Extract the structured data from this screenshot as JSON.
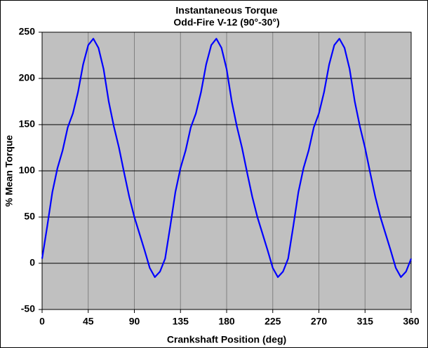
{
  "chart_data": {
    "type": "line",
    "title": "Instantaneous Torque",
    "subtitle": "Odd-Fire V-12 (90°-30°)",
    "x_label": "Crankshaft Position (deg)",
    "y_label": "% Mean Torque",
    "x": [
      0,
      5,
      10,
      15,
      20,
      25,
      30,
      35,
      40,
      45,
      50,
      55,
      60,
      65,
      70,
      75,
      80,
      85,
      90,
      95,
      100,
      105,
      110,
      115,
      120,
      125,
      130,
      135,
      140,
      145,
      150,
      155,
      160,
      165,
      170,
      175,
      180,
      185,
      190,
      195,
      200,
      205,
      210,
      215,
      220,
      225,
      230,
      235,
      240,
      245,
      250,
      255,
      260,
      265,
      270,
      275,
      280,
      285,
      290,
      295,
      300,
      305,
      310,
      315,
      320,
      325,
      330,
      335,
      340,
      345,
      350,
      355,
      360
    ],
    "series": [
      {
        "name": "Torque",
        "color": "#0000ff",
        "values": [
          5,
          40,
          77,
          103,
          122,
          147,
          162,
          185,
          215,
          236,
          243,
          233,
          210,
          175,
          148,
          125,
          98,
          72,
          50,
          32,
          14,
          -5,
          -15,
          -9,
          5,
          40,
          77,
          103,
          122,
          147,
          162,
          185,
          215,
          236,
          243,
          233,
          210,
          175,
          148,
          125,
          98,
          72,
          50,
          32,
          14,
          -5,
          -15,
          -9,
          5,
          40,
          77,
          103,
          122,
          147,
          162,
          185,
          215,
          236,
          243,
          233,
          210,
          175,
          148,
          125,
          98,
          72,
          50,
          32,
          14,
          -5,
          -15,
          -9,
          5
        ]
      }
    ],
    "xlim": [
      0,
      360
    ],
    "xticks": [
      0,
      45,
      90,
      135,
      180,
      225,
      270,
      315,
      360
    ],
    "ylim": [
      -50,
      250
    ],
    "yticks": [
      -50,
      0,
      50,
      100,
      150,
      200,
      250
    ],
    "grid": true
  }
}
